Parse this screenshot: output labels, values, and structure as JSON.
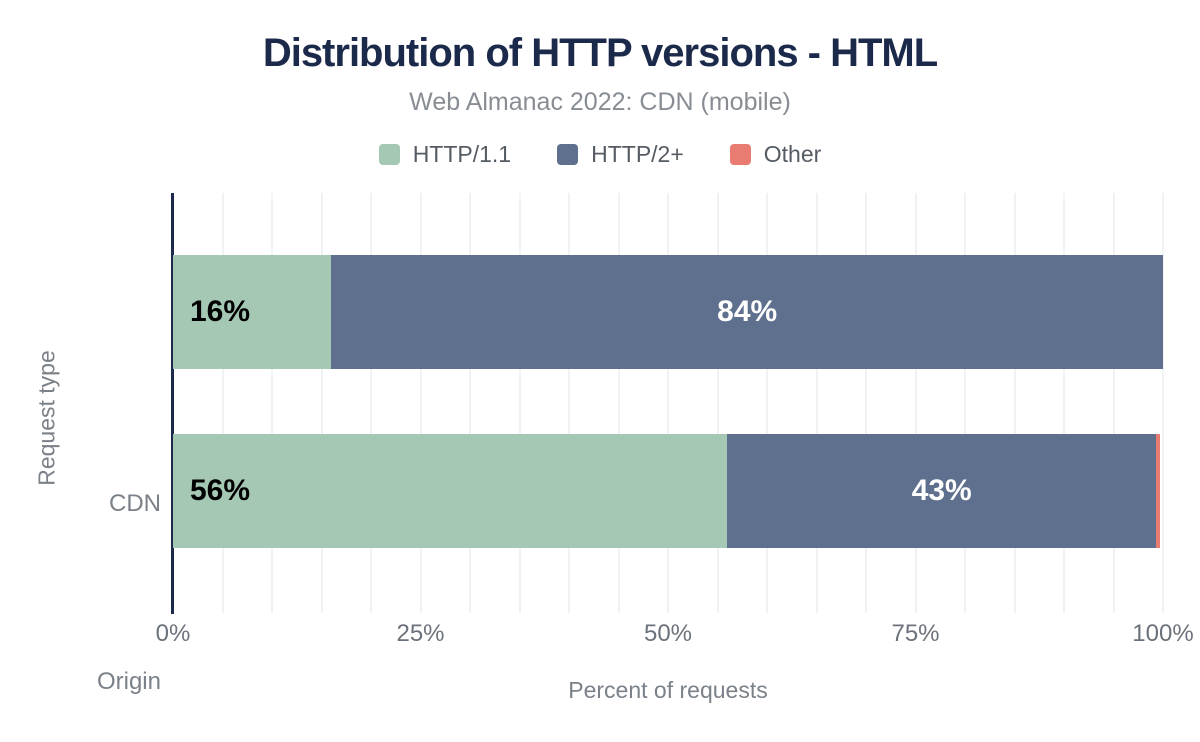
{
  "chart": {
    "title": "Distribution of HTTP versions - HTML",
    "subtitle": "Web Almanac 2022: CDN (mobile)",
    "xlabel": "Percent of requests",
    "ylabel": "Request type"
  },
  "chart_data": {
    "type": "bar",
    "orientation": "horizontal",
    "stacked": true,
    "categories": [
      "CDN",
      "Origin"
    ],
    "series": [
      {
        "name": "HTTP/1.1",
        "color": "#a5c8b5",
        "values": [
          16,
          56
        ],
        "data_labels": [
          "16%",
          "56%"
        ]
      },
      {
        "name": "HTTP/2+",
        "color": "#5e708d",
        "values": [
          84,
          43.3
        ],
        "data_labels": [
          "84%",
          "43%"
        ]
      },
      {
        "name": "Other",
        "color": "#e87c70",
        "values": [
          0,
          0.4
        ],
        "data_labels": [
          "",
          ""
        ]
      }
    ],
    "xlim": [
      0,
      100
    ],
    "x_tick_labels": [
      "0%",
      "25%",
      "50%",
      "75%",
      "100%"
    ],
    "x_tick_values": [
      0,
      25,
      50,
      75,
      100
    ],
    "grid_step_pct": 5,
    "grid_on": true,
    "legend_position": "top"
  },
  "colors": {
    "title": "#1b2a4a",
    "subtitle": "#888d94",
    "axis_line": "#1b2a4a",
    "gridline": "#f1f2f3",
    "tick_label": "#6c727c",
    "category_label": "#7b8189",
    "axis_title": "#7b8189",
    "label_on_light": "#000000",
    "label_on_dark": "#ffffff"
  }
}
